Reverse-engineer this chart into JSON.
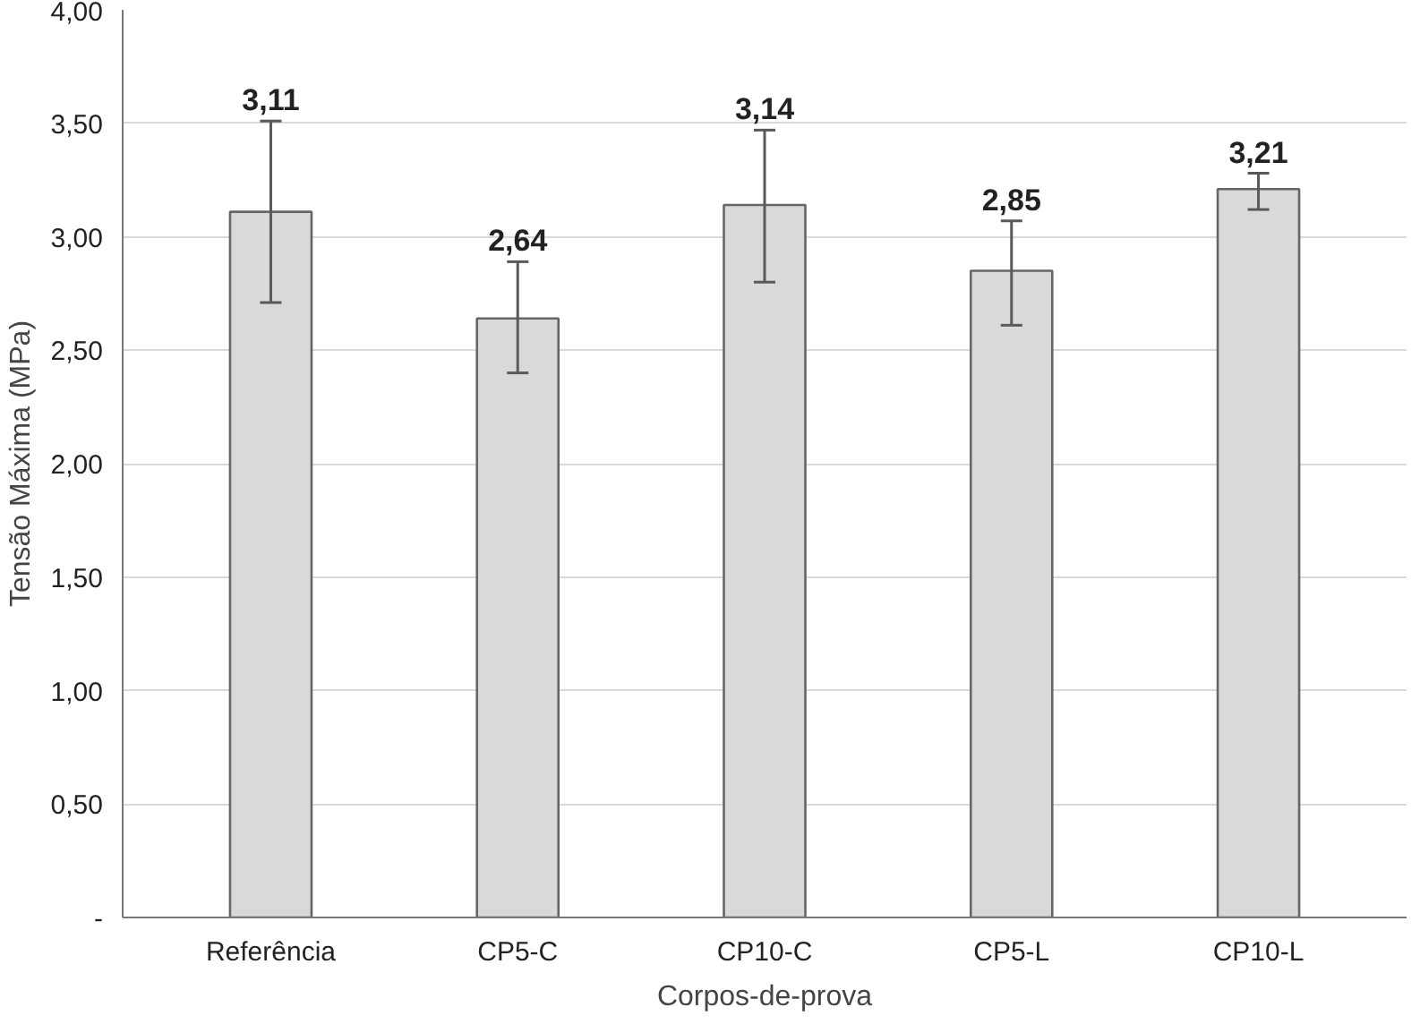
{
  "chart_data": {
    "type": "bar",
    "xlabel": "Corpos-de-prova",
    "ylabel": "Tensão Máxima (MPa)",
    "categories": [
      "Referência",
      "CP5-C",
      "CP10-C",
      "CP5-L",
      "CP10-L"
    ],
    "values": [
      3.11,
      2.64,
      3.14,
      2.85,
      3.21
    ],
    "value_labels": [
      "3,11",
      "2,64",
      "3,14",
      "2,85",
      "3,21"
    ],
    "errors": [
      [
        2.71,
        3.51
      ],
      [
        2.4,
        2.89
      ],
      [
        2.8,
        3.47
      ],
      [
        2.61,
        3.07
      ],
      [
        3.12,
        3.28
      ]
    ],
    "color": "#d9d9d9",
    "ylim": [
      0,
      4
    ],
    "yticks": [
      {
        "value": 0,
        "label": "-"
      },
      {
        "value": 0.5,
        "label": "0,50"
      },
      {
        "value": 1,
        "label": "1,00"
      },
      {
        "value": 1.5,
        "label": "1,50"
      },
      {
        "value": 2,
        "label": "2,00"
      },
      {
        "value": 2.5,
        "label": "2,50"
      },
      {
        "value": 3,
        "label": "3,00"
      },
      {
        "value": 3.5,
        "label": "3,50"
      },
      {
        "value": 4,
        "label": "4,00"
      }
    ],
    "grid": "y"
  }
}
